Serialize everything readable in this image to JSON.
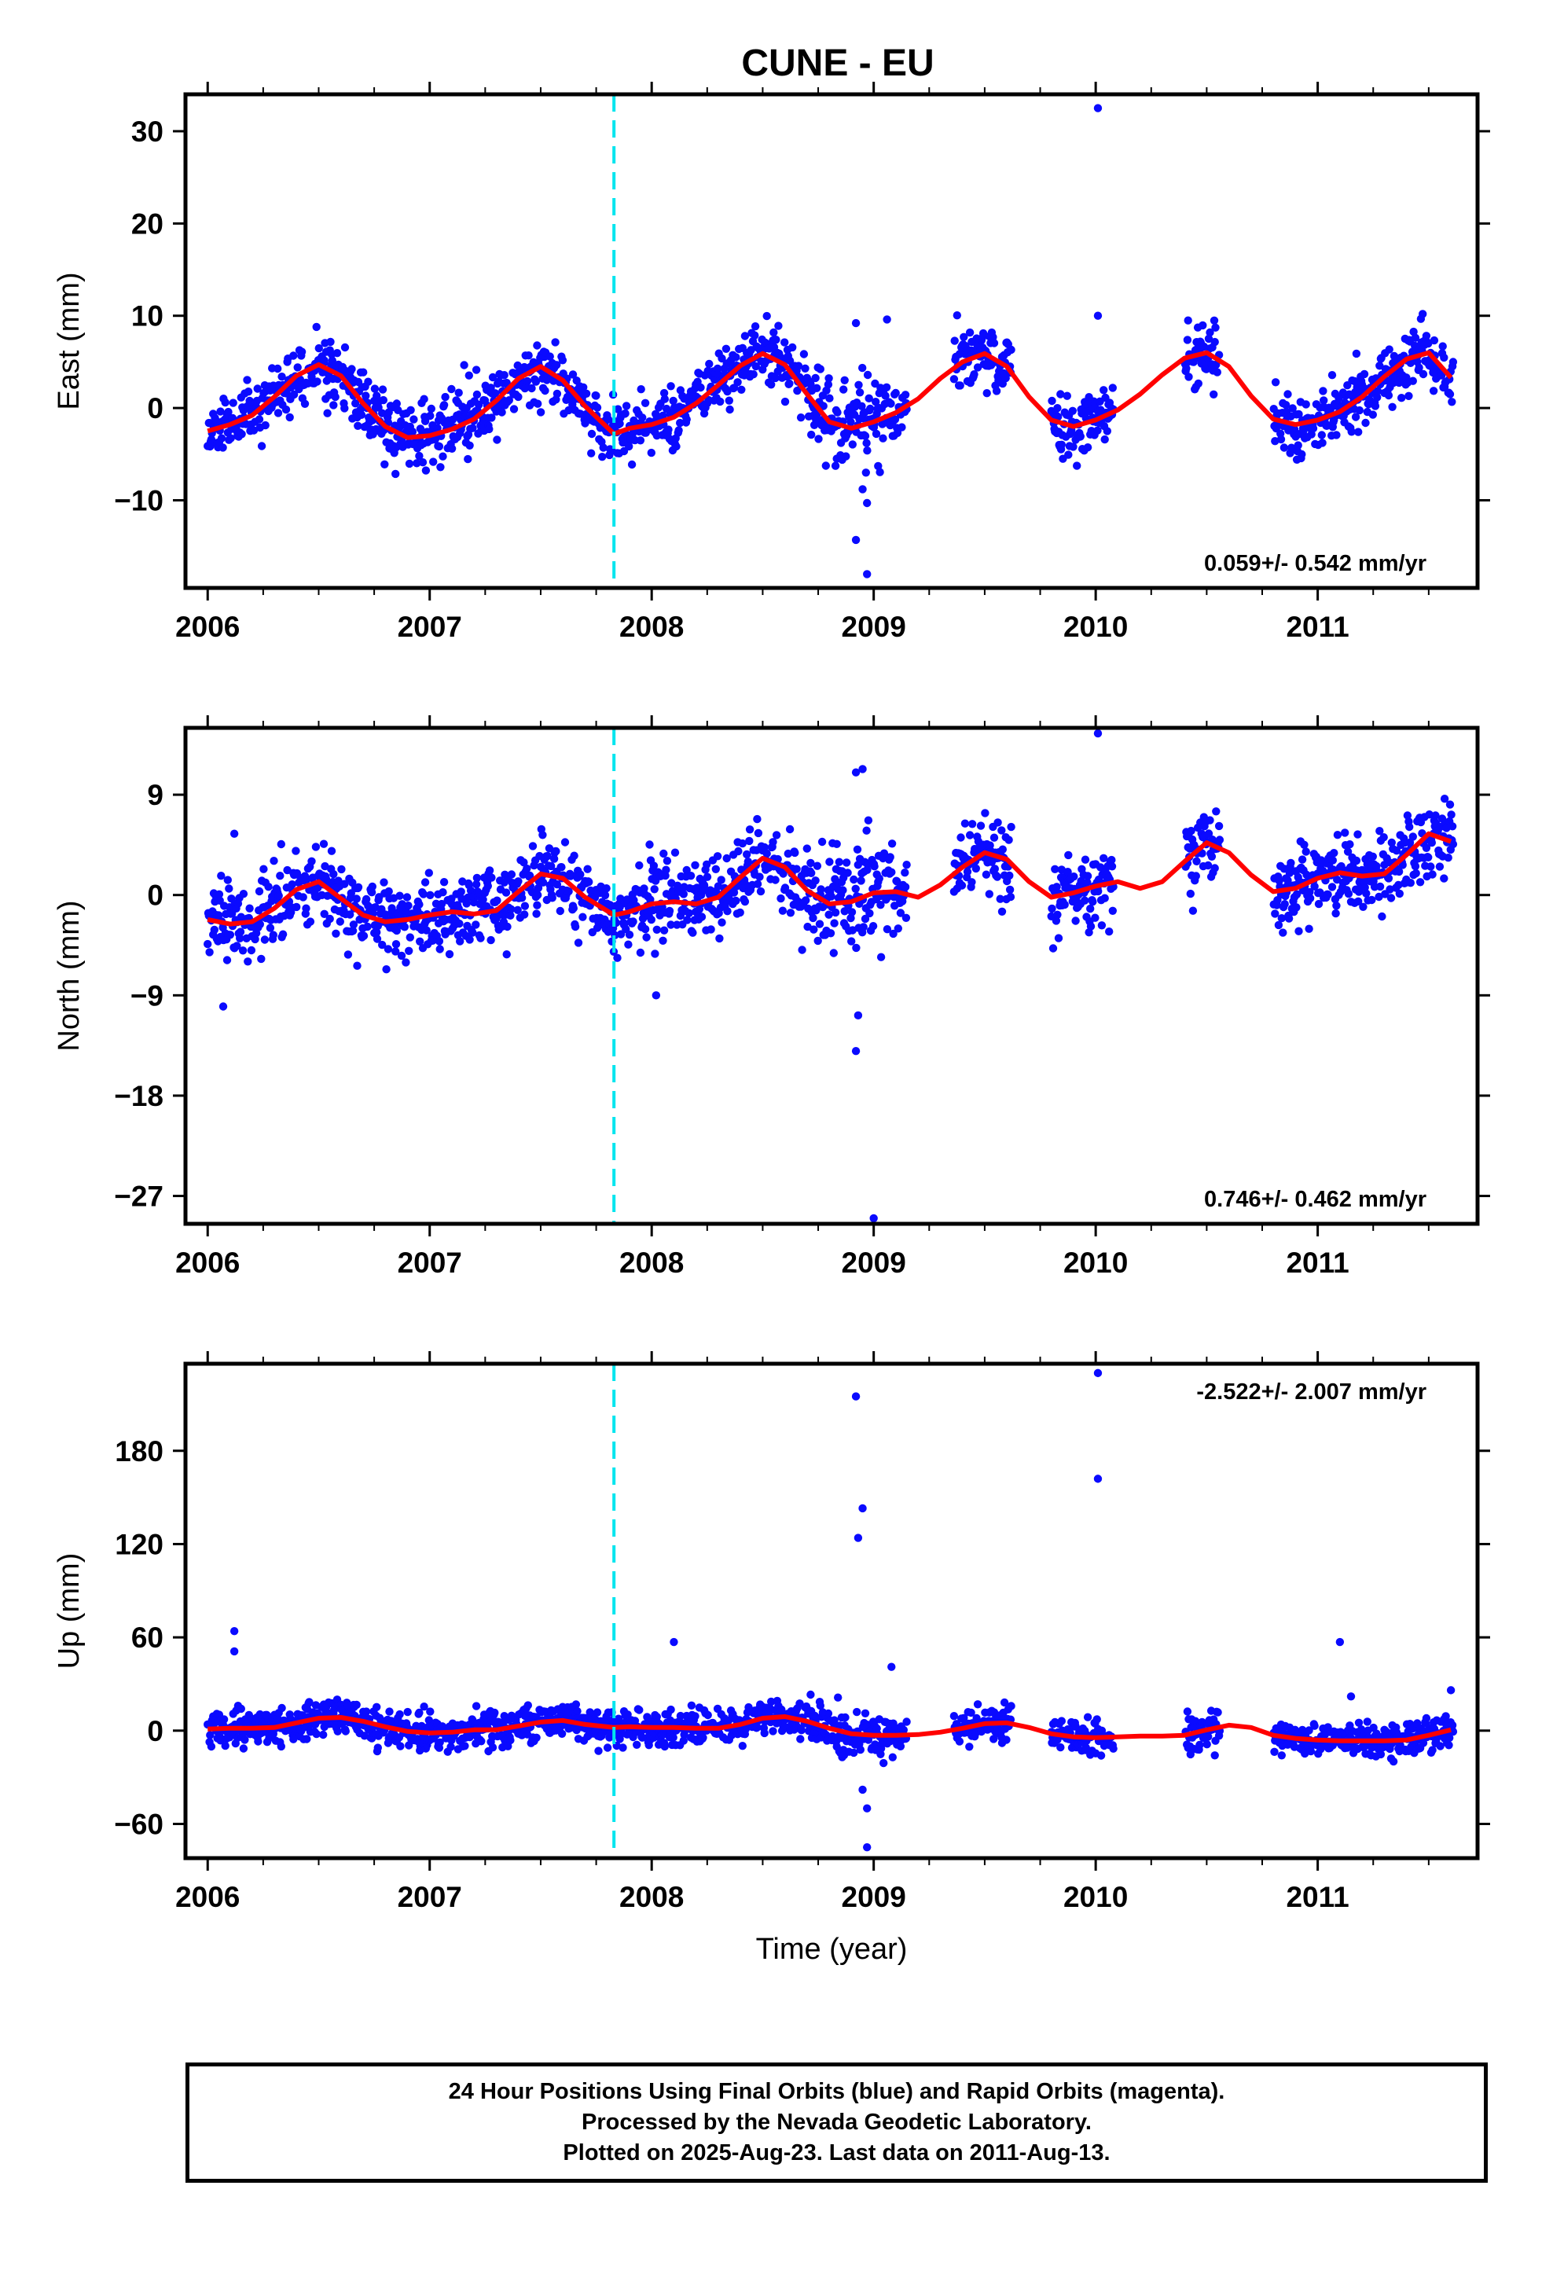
{
  "chart_data": [
    {
      "type": "scatter",
      "title": "CUNE - EU",
      "ylabel": "East (mm)",
      "xlabel": "",
      "xlim": [
        2005.9,
        2011.72
      ],
      "ylim": [
        -19.5,
        34
      ],
      "xticks": [
        "2006",
        "2007",
        "2008",
        "2009",
        "2010",
        "2011"
      ],
      "yticks": [
        "30",
        "20",
        "10",
        "0",
        "−10"
      ],
      "ytick_values": [
        30,
        20,
        10,
        0,
        -10
      ],
      "rate_text": "0.059+/- 0.542 mm/yr",
      "rate_position": "bottom-right",
      "event_line_year": 2007.83,
      "model": {
        "name": "seasonal fit",
        "x": [
          2006.0,
          2006.1,
          2006.2,
          2006.3,
          2006.4,
          2006.5,
          2006.6,
          2006.7,
          2006.8,
          2006.9,
          2007.0,
          2007.1,
          2007.2,
          2007.3,
          2007.4,
          2007.5,
          2007.6,
          2007.7,
          2007.83,
          2007.9,
          2008.0,
          2008.1,
          2008.2,
          2008.3,
          2008.4,
          2008.5,
          2008.6,
          2008.7,
          2008.8,
          2008.9,
          2009.0,
          2009.1,
          2009.2,
          2009.3,
          2009.4,
          2009.5,
          2009.6,
          2009.7,
          2009.8,
          2009.9,
          2010.0,
          2010.1,
          2010.2,
          2010.3,
          2010.4,
          2010.5,
          2010.6,
          2010.7,
          2010.8,
          2010.9,
          2011.0,
          2011.1,
          2011.2,
          2011.3,
          2011.4,
          2011.5,
          2011.6
        ],
        "y": [
          -2.5,
          -1.8,
          -0.8,
          1.2,
          3.5,
          4.7,
          3.5,
          0.5,
          -2.0,
          -3.2,
          -3.0,
          -2.3,
          -1.2,
          0.8,
          3.2,
          4.5,
          3.0,
          0.2,
          -2.8,
          -2.2,
          -1.8,
          -1.0,
          0.5,
          2.5,
          4.6,
          5.9,
          4.7,
          1.5,
          -1.5,
          -2.2,
          -1.5,
          -0.5,
          1.0,
          3.2,
          5.0,
          5.9,
          4.5,
          1.2,
          -1.3,
          -2.0,
          -1.3,
          -0.2,
          1.5,
          3.6,
          5.4,
          6.0,
          4.5,
          1.3,
          -1.2,
          -1.8,
          -1.3,
          -0.4,
          1.2,
          3.4,
          5.3,
          6.0,
          3.3
        ]
      },
      "outliers": [
        [
          2010.01,
          32.5
        ],
        [
          2010.01,
          10.0
        ],
        [
          2008.92,
          9.2
        ],
        [
          2009.06,
          9.6
        ],
        [
          2008.92,
          -14.3
        ],
        [
          2008.97,
          -18.0
        ],
        [
          2008.97,
          -10.3
        ],
        [
          2008.95,
          -8.8
        ]
      ]
    },
    {
      "type": "scatter",
      "title": "",
      "ylabel": "North (mm)",
      "xlabel": "",
      "xlim": [
        2005.9,
        2011.72
      ],
      "ylim": [
        -29.5,
        15
      ],
      "xticks": [
        "2006",
        "2007",
        "2008",
        "2009",
        "2010",
        "2011"
      ],
      "yticks": [
        "9",
        "0",
        "−9",
        "−18",
        "−27"
      ],
      "ytick_values": [
        9,
        0,
        -9,
        -18,
        -27
      ],
      "rate_text": "0.746+/- 0.462 mm/yr",
      "rate_position": "bottom-right",
      "event_line_year": 2007.83,
      "model": {
        "name": "seasonal fit",
        "x": [
          2006.0,
          2006.1,
          2006.2,
          2006.3,
          2006.4,
          2006.5,
          2006.6,
          2006.7,
          2006.8,
          2006.9,
          2007.0,
          2007.1,
          2007.2,
          2007.3,
          2007.4,
          2007.5,
          2007.6,
          2007.7,
          2007.83,
          2007.9,
          2008.0,
          2008.1,
          2008.2,
          2008.3,
          2008.4,
          2008.5,
          2008.6,
          2008.7,
          2008.8,
          2008.9,
          2009.0,
          2009.1,
          2009.2,
          2009.3,
          2009.4,
          2009.5,
          2009.6,
          2009.7,
          2009.8,
          2009.9,
          2010.0,
          2010.1,
          2010.2,
          2010.3,
          2010.4,
          2010.5,
          2010.6,
          2010.7,
          2010.8,
          2010.9,
          2011.0,
          2011.1,
          2011.2,
          2011.3,
          2011.4,
          2011.5,
          2011.6
        ],
        "y": [
          -2.2,
          -2.6,
          -2.4,
          -1.2,
          0.5,
          1.2,
          -0.3,
          -1.8,
          -2.4,
          -2.2,
          -1.8,
          -1.5,
          -1.7,
          -1.4,
          0.3,
          1.9,
          1.5,
          -0.2,
          -1.8,
          -1.5,
          -0.8,
          -0.6,
          -0.8,
          -0.2,
          1.6,
          3.3,
          2.5,
          0.4,
          -0.8,
          -0.6,
          0.2,
          0.3,
          -0.2,
          0.9,
          2.5,
          3.8,
          3.2,
          1.2,
          -0.2,
          0.2,
          0.8,
          1.2,
          0.6,
          1.2,
          3.0,
          4.7,
          3.8,
          1.8,
          0.3,
          0.6,
          1.5,
          2.0,
          1.7,
          1.9,
          3.6,
          5.5,
          4.8
        ]
      },
      "outliers": [
        [
          2006.12,
          5.5
        ],
        [
          2006.07,
          -10.0
        ],
        [
          2008.92,
          11.0
        ],
        [
          2008.95,
          11.3
        ],
        [
          2010.01,
          14.5
        ],
        [
          2008.92,
          -14.0
        ],
        [
          2009.0,
          -29.0
        ],
        [
          2008.93,
          -10.8
        ],
        [
          2008.02,
          -9.0
        ]
      ]
    },
    {
      "type": "scatter",
      "title": "",
      "ylabel": "Up (mm)",
      "xlabel": "Time (year)",
      "xlim": [
        2005.9,
        2011.72
      ],
      "ylim": [
        -82,
        236
      ],
      "xticks": [
        "2006",
        "2007",
        "2008",
        "2009",
        "2010",
        "2011"
      ],
      "yticks": [
        "180",
        "120",
        "60",
        "0",
        "−60"
      ],
      "ytick_values": [
        180,
        120,
        60,
        0,
        -60
      ],
      "rate_text": "-2.522+/- 2.007 mm/yr",
      "rate_position": "top-right",
      "event_line_year": 2007.83,
      "model": {
        "name": "seasonal fit",
        "x": [
          2006.0,
          2006.1,
          2006.2,
          2006.3,
          2006.4,
          2006.5,
          2006.6,
          2006.7,
          2006.8,
          2006.9,
          2007.0,
          2007.1,
          2007.2,
          2007.3,
          2007.4,
          2007.5,
          2007.6,
          2007.7,
          2007.83,
          2007.9,
          2008.0,
          2008.1,
          2008.2,
          2008.3,
          2008.4,
          2008.5,
          2008.6,
          2008.7,
          2008.8,
          2008.9,
          2009.0,
          2009.1,
          2009.2,
          2009.3,
          2009.4,
          2009.5,
          2009.6,
          2009.7,
          2009.8,
          2009.9,
          2010.0,
          2010.1,
          2010.2,
          2010.3,
          2010.4,
          2010.5,
          2010.6,
          2010.7,
          2010.8,
          2010.9,
          2011.0,
          2011.1,
          2011.2,
          2011.3,
          2011.4,
          2011.5,
          2011.6
        ],
        "y": [
          1.0,
          1.5,
          1.5,
          2.0,
          5.0,
          8.0,
          8.5,
          6.0,
          2.5,
          -0.5,
          -1.5,
          -1.0,
          0.5,
          0.5,
          3.0,
          5.5,
          6.5,
          4.0,
          2.0,
          2.5,
          2.0,
          2.0,
          1.5,
          1.5,
          4.0,
          8.0,
          9.0,
          6.0,
          1.5,
          -2.0,
          -3.0,
          -3.0,
          -2.5,
          -1.0,
          1.5,
          4.5,
          5.0,
          2.0,
          -2.0,
          -4.0,
          -4.5,
          -4.0,
          -3.5,
          -3.5,
          -3.0,
          0.5,
          3.5,
          2.0,
          -3.0,
          -5.0,
          -6.0,
          -6.5,
          -6.5,
          -6.5,
          -6.0,
          -3.0,
          0.5
        ]
      },
      "outliers": [
        [
          2006.12,
          64
        ],
        [
          2006.12,
          51
        ],
        [
          2008.1,
          57
        ],
        [
          2008.92,
          215
        ],
        [
          2008.93,
          124
        ],
        [
          2008.95,
          143
        ],
        [
          2010.01,
          230
        ],
        [
          2010.01,
          162
        ],
        [
          2011.1,
          57
        ],
        [
          2009.08,
          41
        ],
        [
          2008.97,
          -50
        ],
        [
          2008.97,
          -75
        ],
        [
          2008.95,
          -38
        ],
        [
          2011.6,
          26
        ],
        [
          2011.15,
          22
        ]
      ]
    }
  ],
  "colors": {
    "points": "#0a0aff",
    "model": "#ff0000",
    "event_line": "#00e5ee",
    "frame": "#000000"
  },
  "footer": {
    "line1": "24 Hour Positions Using Final Orbits (blue) and Rapid Orbits (magenta).",
    "line2": "Processed by the Nevada Geodetic Laboratory.",
    "line3": "Plotted on 2025-Aug-23. Last data on 2011-Aug-13."
  }
}
